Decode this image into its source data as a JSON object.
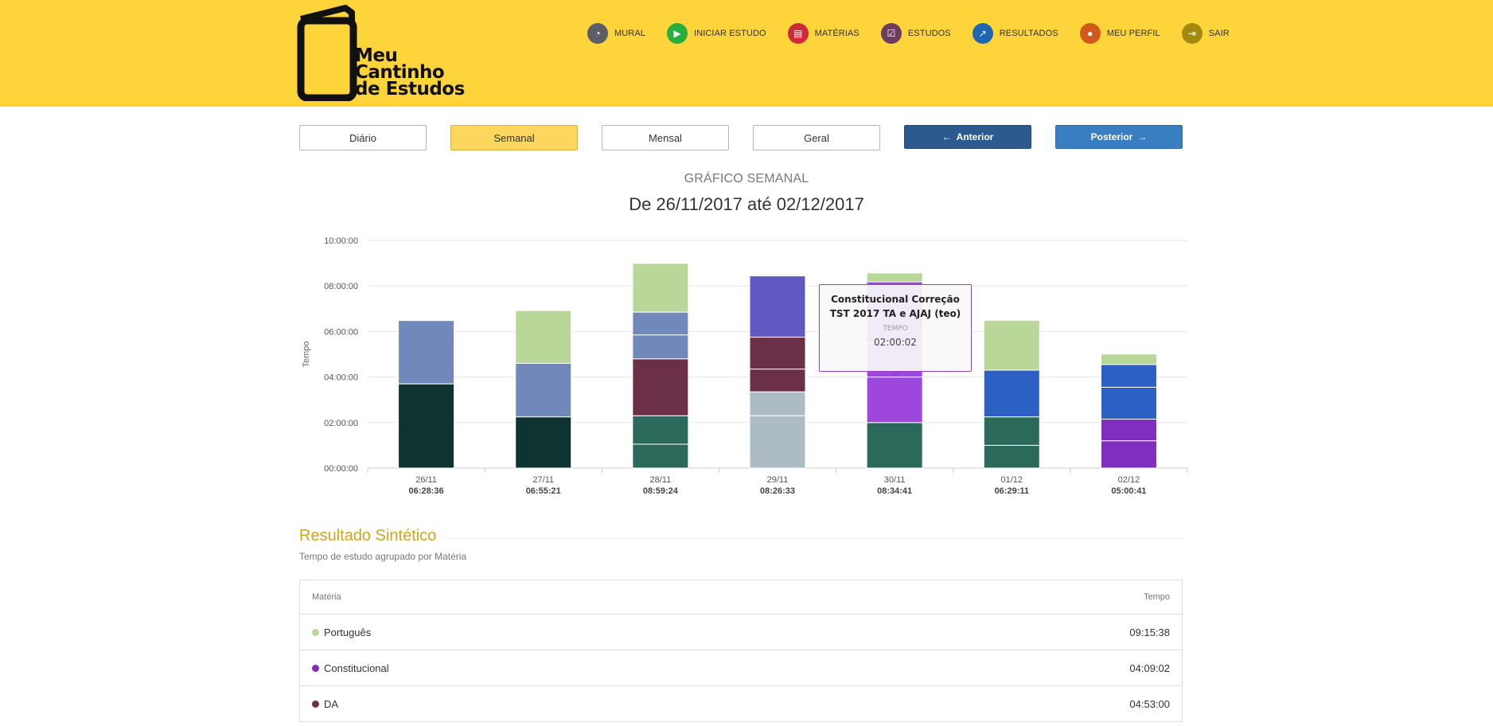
{
  "header": {
    "logo_lines": [
      "Meu",
      "Cantinho",
      "de Estudos"
    ],
    "nav": [
      {
        "label": "MURAL",
        "icon": "dashboard-icon",
        "color": "#5d5d67",
        "glyph": "◔"
      },
      {
        "label": "INICIAR ESTUDO",
        "icon": "play-icon",
        "color": "#27ae3d",
        "glyph": "▶"
      },
      {
        "label": "MATÉRIAS",
        "icon": "book-icon",
        "color": "#d0283a",
        "glyph": "▤"
      },
      {
        "label": "ESTUDOS",
        "icon": "calendar-check-icon",
        "color": "#6a3c5e",
        "glyph": "☑"
      },
      {
        "label": "RESULTADOS",
        "icon": "line-chart-icon",
        "color": "#1f66b3",
        "glyph": "↗"
      },
      {
        "label": "MEU PERFIL",
        "icon": "user-icon",
        "color": "#d2591c",
        "glyph": "●"
      },
      {
        "label": "SAIR",
        "icon": "sign-out-icon",
        "color": "#a28a0d",
        "glyph": "⇥"
      }
    ]
  },
  "period_buttons": {
    "diario": "Diário",
    "semanal": "Semanal",
    "mensal": "Mensal",
    "geral": "Geral",
    "anterior": "Anterior",
    "posterior": "Posterior"
  },
  "chart_header": {
    "subtitle": "GRÁFICO SEMANAL",
    "title": "De 26/11/2017 até 02/12/2017"
  },
  "chart_data": {
    "type": "bar",
    "stacked": true,
    "ylabel": "Tempo",
    "y_ticks": [
      "00:00:00",
      "02:00:00",
      "04:00:00",
      "06:00:00",
      "08:00:00",
      "10:00:00"
    ],
    "ylim_hours": [
      0,
      10
    ],
    "categories": [
      "26/11",
      "27/11",
      "28/11",
      "29/11",
      "30/11",
      "01/12",
      "02/12"
    ],
    "totals": [
      "06:28:36",
      "06:55:21",
      "08:59:24",
      "08:26:33",
      "08:34:41",
      "06:29:11",
      "05:00:41"
    ],
    "stacks_hours": [
      [
        {
          "h": 3.7,
          "c": "#0e3331"
        },
        {
          "h": 2.78,
          "c": "#7189ba"
        }
      ],
      [
        {
          "h": 2.25,
          "c": "#0e3331"
        },
        {
          "h": 2.35,
          "c": "#7189ba"
        },
        {
          "h": 2.32,
          "c": "#b8d799"
        }
      ],
      [
        {
          "h": 1.05,
          "c": "#2b6a5b"
        },
        {
          "h": 1.25,
          "c": "#2b6a5b"
        },
        {
          "h": 2.5,
          "c": "#6b2f47"
        },
        {
          "h": 1.05,
          "c": "#7189ba"
        },
        {
          "h": 1.0,
          "c": "#7189ba"
        },
        {
          "h": 2.14,
          "c": "#b8d799"
        }
      ],
      [
        {
          "h": 2.3,
          "c": "#adbcc4"
        },
        {
          "h": 1.05,
          "c": "#adbcc4"
        },
        {
          "h": 1.0,
          "c": "#6b2f47"
        },
        {
          "h": 1.4,
          "c": "#6b2f47"
        },
        {
          "h": 2.69,
          "c": "#6058c3"
        }
      ],
      [
        {
          "h": 2.0,
          "c": "#2b6a5b"
        },
        {
          "h": 2.0,
          "c": "#9d47dd"
        },
        {
          "h": 1.48,
          "c": "#9d47dd"
        },
        {
          "h": 2.7,
          "c": "#9d47dd"
        },
        {
          "h": 0.39,
          "c": "#b8d799"
        }
      ],
      [
        {
          "h": 1.0,
          "c": "#2b6a5b"
        },
        {
          "h": 1.25,
          "c": "#2b6a5b"
        },
        {
          "h": 2.05,
          "c": "#2c60c3"
        },
        {
          "h": 2.19,
          "c": "#b8d799"
        }
      ],
      [
        {
          "h": 1.2,
          "c": "#7f2ec0"
        },
        {
          "h": 0.95,
          "c": "#7f2ec0"
        },
        {
          "h": 1.4,
          "c": "#2c60c3"
        },
        {
          "h": 1.0,
          "c": "#2c60c3"
        },
        {
          "h": 0.46,
          "c": "#b8d799"
        }
      ]
    ]
  },
  "tooltip": {
    "title": "Constitucional Correção TST 2017 TA e AJAJ (teo)",
    "label": "TEMPO",
    "value": "02:00:02"
  },
  "summary": {
    "title": "Resultado Sintético",
    "subtitle": "Tempo de estudo agrupado por Matéria",
    "col_materia": "Matéria",
    "col_tempo": "Tempo",
    "rows": [
      {
        "name": "Português",
        "time": "09:15:38",
        "color": "#b8d799"
      },
      {
        "name": "Constitucional",
        "time": "04:09:02",
        "color": "#7f2ec0"
      },
      {
        "name": "DA",
        "time": "04:53:00",
        "color": "#6b2f47"
      }
    ]
  }
}
